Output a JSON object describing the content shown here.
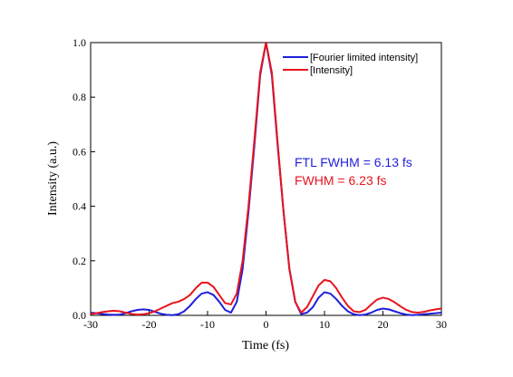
{
  "chart_data": {
    "type": "line",
    "x_label": "Time (fs)",
    "y_label": "Intensity (a.u.)",
    "x": [
      -30,
      -29,
      -28,
      -27,
      -26,
      -25,
      -24,
      -23,
      -22,
      -21,
      -20,
      -19,
      -18,
      -17,
      -16,
      -15,
      -14,
      -13,
      -12,
      -11,
      -10,
      -9,
      -8,
      -7,
      -6,
      -5,
      -4,
      -3,
      -2,
      -1,
      0,
      1,
      2,
      3,
      4,
      5,
      6,
      7,
      8,
      9,
      10,
      11,
      12,
      13,
      14,
      15,
      16,
      17,
      18,
      19,
      20,
      21,
      22,
      23,
      24,
      25,
      26,
      27,
      28,
      29,
      30
    ],
    "series": [
      {
        "name": "[Fourier limited intensity]",
        "color": "#1f1fdc",
        "values": [
          0.01,
          0.008,
          0.005,
          0.003,
          0.002,
          0.003,
          0.008,
          0.015,
          0.02,
          0.022,
          0.02,
          0.013,
          0.006,
          0.002,
          0.001,
          0.004,
          0.015,
          0.035,
          0.06,
          0.08,
          0.085,
          0.075,
          0.05,
          0.02,
          0.01,
          0.05,
          0.17,
          0.38,
          0.62,
          0.88,
          1.0,
          0.88,
          0.62,
          0.38,
          0.17,
          0.05,
          0.005,
          0.01,
          0.03,
          0.065,
          0.085,
          0.08,
          0.06,
          0.035,
          0.015,
          0.004,
          0.001,
          0.003,
          0.01,
          0.02,
          0.025,
          0.022,
          0.015,
          0.008,
          0.003,
          0.001,
          0.002,
          0.004,
          0.006,
          0.008,
          0.01
        ]
      },
      {
        "name": "[Intensity]",
        "color": "#e8141e",
        "values": [
          0.005,
          0.008,
          0.012,
          0.015,
          0.017,
          0.015,
          0.01,
          0.005,
          0.003,
          0.004,
          0.008,
          0.015,
          0.025,
          0.035,
          0.045,
          0.05,
          0.06,
          0.075,
          0.1,
          0.12,
          0.12,
          0.105,
          0.075,
          0.045,
          0.04,
          0.08,
          0.2,
          0.4,
          0.64,
          0.89,
          1.0,
          0.89,
          0.63,
          0.38,
          0.17,
          0.05,
          0.01,
          0.03,
          0.07,
          0.11,
          0.13,
          0.125,
          0.1,
          0.065,
          0.035,
          0.015,
          0.012,
          0.02,
          0.04,
          0.058,
          0.065,
          0.06,
          0.048,
          0.033,
          0.02,
          0.012,
          0.01,
          0.013,
          0.018,
          0.022,
          0.025
        ]
      }
    ],
    "xlim": [
      -30,
      30
    ],
    "xticks": [
      -30,
      -20,
      -10,
      0,
      10,
      20,
      30
    ],
    "ylim": [
      0,
      1
    ],
    "yticks": [
      {
        "value": 0,
        "label": "0.0"
      },
      0.2,
      0.4,
      0.6,
      0.8,
      {
        "value": 1,
        "label": "1.0"
      }
    ],
    "legend": "upper right",
    "annotations": [
      {
        "text": "FTL FWHM = 6.13 fs",
        "color": "#1f1fdc"
      },
      {
        "text": "FWHM = 6.23 fs",
        "color": "#e8141e"
      }
    ]
  }
}
